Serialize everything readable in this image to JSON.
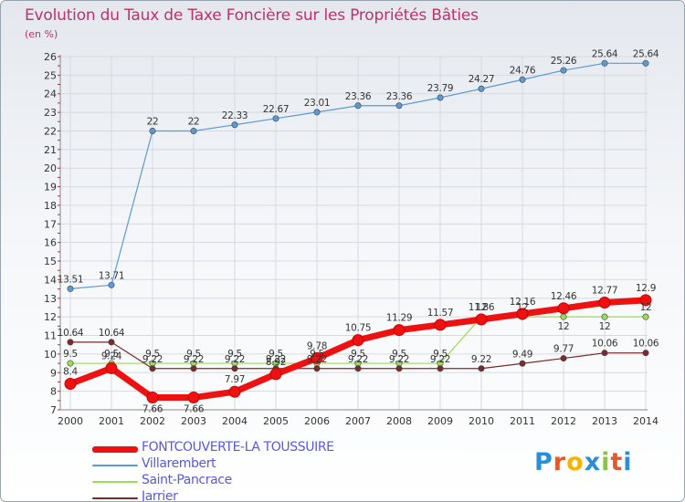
{
  "chart_data": {
    "type": "line",
    "title": "Evolution du Taux de Taxe Foncière sur les Propriétés Bâties",
    "subtitle": "(en %)",
    "ylim": [
      7,
      26
    ],
    "yticks": [
      "7",
      "8",
      "9",
      "10",
      "11",
      "12",
      "13",
      "14",
      "15",
      "16",
      "17",
      "18",
      "19",
      "20",
      "21",
      "22",
      "23",
      "24",
      "25",
      "26"
    ],
    "categories": [
      "2000",
      "2001",
      "2002",
      "2003",
      "2004",
      "2005",
      "2006",
      "2007",
      "2008",
      "2009",
      "2010",
      "2011",
      "2012",
      "2013",
      "2014"
    ],
    "series": [
      {
        "name": "FONTCOUVERTE-LA TOUSSUIRE",
        "color": "#ee1111",
        "width": 7,
        "marker": 6,
        "values": [
          8.4,
          9.24,
          7.66,
          7.66,
          7.97,
          8.92,
          9.78,
          10.75,
          11.29,
          11.57,
          11.86,
          12.16,
          12.46,
          12.77,
          12.9
        ],
        "labels": [
          "8.4",
          "9.24",
          "7.66",
          "7.66",
          "7.97",
          "8.92",
          "9.78",
          "10.75",
          "11.29",
          "11.57",
          "11.86",
          "12.16",
          "12.46",
          "12.77",
          "12.9"
        ],
        "label_pos": [
          "above",
          "above",
          "below",
          "below",
          "above",
          "above",
          "above",
          "above",
          "above",
          "above",
          "above",
          "above",
          "above",
          "above",
          "above"
        ]
      },
      {
        "name": "Villarembert",
        "color": "#5b9bd5",
        "width": 1.2,
        "marker": 3.2,
        "values": [
          13.51,
          13.71,
          22,
          22,
          22.33,
          22.67,
          23.01,
          23.36,
          23.36,
          23.79,
          24.27,
          24.76,
          25.26,
          25.64,
          25.64
        ],
        "labels": [
          "13.51",
          "13.71",
          "22",
          "22",
          "22.33",
          "22.67",
          "23.01",
          "23.36",
          "23.36",
          "23.79",
          "24.27",
          "24.76",
          "25.26",
          "25.64",
          "25.64"
        ],
        "label_pos": [
          "above",
          "above",
          "above",
          "above",
          "above",
          "above",
          "above",
          "above",
          "above",
          "above",
          "above",
          "above",
          "above",
          "above",
          "above"
        ]
      },
      {
        "name": "Saint-Pancrace",
        "color": "#99dd55",
        "width": 1.2,
        "marker": 3.2,
        "values": [
          9.5,
          9.5,
          9.5,
          9.5,
          9.5,
          9.5,
          9.5,
          9.5,
          9.5,
          9.5,
          12,
          12,
          12,
          12,
          12
        ],
        "labels": [
          "9.5",
          "9.5",
          "9.5",
          "9.5",
          "9.5",
          "9.5",
          "9.5",
          "9.5",
          "9.5",
          "9.5",
          "12",
          "12",
          "12",
          "12",
          "12"
        ],
        "label_pos": [
          "above",
          "above",
          "above",
          "above",
          "above",
          "above",
          "above",
          "above",
          "above",
          "above",
          "above",
          "above",
          "below",
          "below",
          "above"
        ]
      },
      {
        "name": "Jarrier",
        "color": "#7a2a2a",
        "width": 1.2,
        "marker": 3.2,
        "values": [
          10.64,
          10.64,
          9.22,
          9.22,
          9.22,
          9.22,
          9.22,
          9.22,
          9.22,
          9.22,
          9.22,
          9.49,
          9.77,
          10.06,
          10.06
        ],
        "labels": [
          "10.64",
          "10.64",
          "9.22",
          "9.22",
          "9.22",
          "9.22",
          "9.22",
          "9.22",
          "9.22",
          "9.22",
          "9.22",
          "9.49",
          "9.77",
          "10.06",
          "10.06"
        ],
        "label_pos": [
          "above",
          "above",
          "above",
          "above",
          "above",
          "above",
          "above",
          "above",
          "above",
          "above",
          "above",
          "above",
          "above",
          "above",
          "above"
        ]
      }
    ]
  },
  "legend": {
    "items": [
      {
        "label": "FONTCOUVERTE-LA TOUSSUIRE",
        "color": "#ee1111",
        "thickness": 7
      },
      {
        "label": "Villarembert",
        "color": "#5b9bd5",
        "thickness": 2
      },
      {
        "label": "Saint-Pancrace",
        "color": "#99dd55",
        "thickness": 2
      },
      {
        "label": "Jarrier",
        "color": "#7a2a2a",
        "thickness": 2
      }
    ]
  },
  "logo": {
    "letters": [
      "P",
      "r",
      "o",
      "x",
      "i",
      "t",
      "i"
    ],
    "colors": [
      "#2c8fd6",
      "#e35a2a",
      "#f4b400",
      "#2c8fd6",
      "#8bc34a",
      "#e35a2a",
      "#2c8fd6"
    ]
  }
}
